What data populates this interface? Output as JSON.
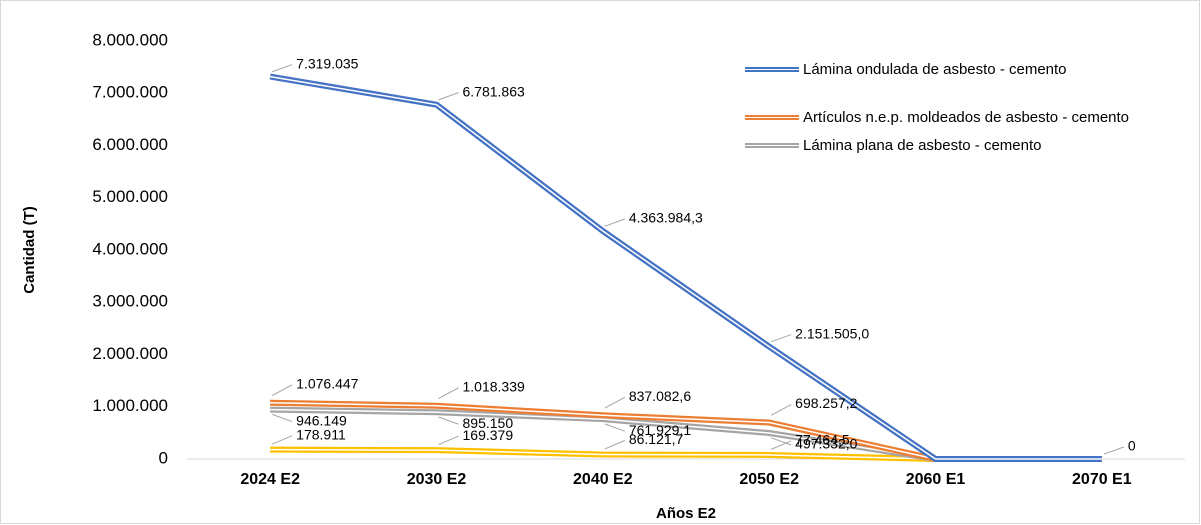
{
  "chart_data": {
    "type": "line",
    "x_label": "Años E2",
    "y_label": "Cantidad (T)",
    "categories": [
      "2024 E2",
      "2030 E2",
      "2040 E2",
      "2050 E2",
      "2060 E1",
      "2070 E1"
    ],
    "ylim": [
      0,
      8000000
    ],
    "yticks": [
      0,
      {
        "value": 1000000,
        "label": "1.000.000"
      },
      {
        "value": 2000000,
        "label": "2.000.000"
      },
      {
        "value": 3000000,
        "label": "3.000.000"
      },
      {
        "value": 4000000,
        "label": "4.000.000"
      },
      {
        "value": 5000000,
        "label": "5.000.000"
      },
      {
        "value": 6000000,
        "label": "6.000.000"
      },
      {
        "value": 7000000,
        "label": "7.000.000"
      },
      {
        "value": 8000000,
        "label": "8.000.000"
      }
    ],
    "grid": false,
    "legend": "top-right",
    "series": [
      {
        "name": "Lámina ondulada de asbesto - cemento",
        "color": "#4472c4",
        "values": [
          7319035,
          6781863,
          4363984.3,
          2151505.0,
          0,
          0
        ],
        "value_labels": [
          "7.319.035",
          "6.781.863",
          "4.363.984,3",
          "2.151.505,0",
          null,
          "0"
        ]
      },
      {
        "name": "Artículos n.e.p. moldeados de asbesto - cemento",
        "color": "#ed7d31",
        "values": [
          1076447,
          1018339,
          837082.6,
          698257.2,
          0,
          0
        ],
        "value_labels": [
          "1.076.447",
          "1.018.339",
          "837.082,6",
          "698.257,2",
          null,
          null
        ]
      },
      {
        "name": "Lámina plana de asbesto - cemento",
        "color": "#a5a5a5",
        "values": [
          946149,
          895150,
          761929.1,
          497332.0,
          0,
          0
        ],
        "value_labels": [
          "946.149",
          "895.150",
          "761.929,1",
          "497.332,0",
          null,
          null
        ]
      },
      {
        "color": "#ffc000",
        "values": [
          178911,
          169379,
          86121.7,
          77464.5,
          0,
          0
        ],
        "value_labels": [
          "178.911",
          "169.379",
          "86.121,7",
          "77.464,5",
          null,
          null
        ]
      }
    ]
  }
}
